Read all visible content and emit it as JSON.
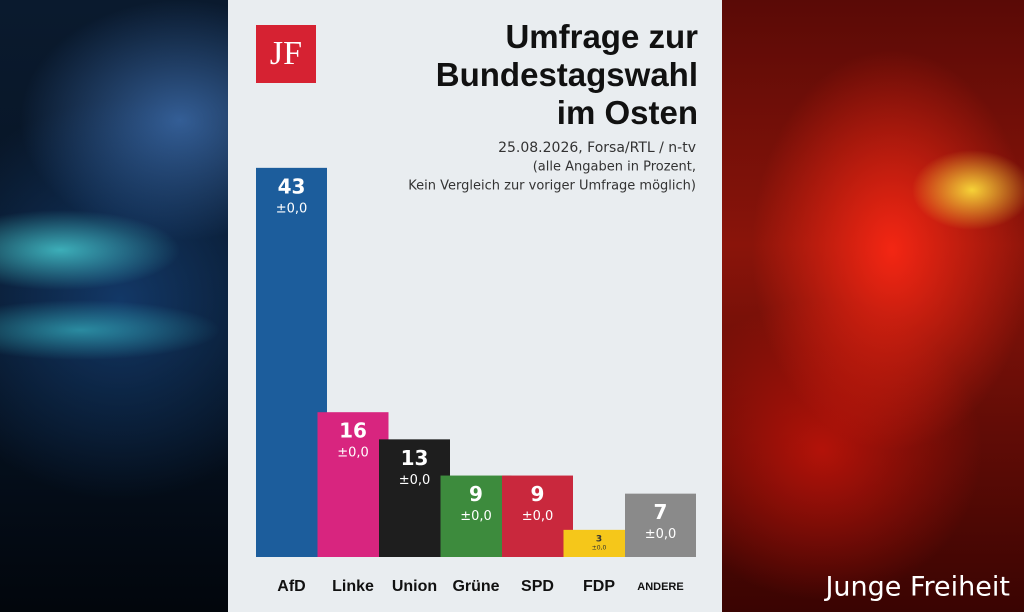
{
  "chart_data": {
    "type": "bar",
    "title": "Umfrage zur Bundestagswahl im Osten",
    "subtitle": "25.08.2026, Forsa/RTL / n-tv",
    "notes": [
      "(alle Angaben in Prozent,",
      "Kein Vergleich zur voriger Umfrage möglich)"
    ],
    "categories": [
      "AfD",
      "Linke",
      "Union",
      "Grüne",
      "SPD",
      "FDP",
      "ANDERE"
    ],
    "values": [
      43,
      16,
      13,
      9,
      9,
      3,
      7
    ],
    "changes": [
      "±0,0",
      "±0,0",
      "±0,0",
      "±0,0",
      "±0,0",
      "±0,0",
      "±0,0"
    ],
    "colors": [
      "#1c5d9c",
      "#d8257f",
      "#1e1e1e",
      "#3d8b3d",
      "#c9283d",
      "#f5c71a",
      "#8a8a8a"
    ]
  },
  "logo": "JF",
  "brand": "Junge Freiheit"
}
